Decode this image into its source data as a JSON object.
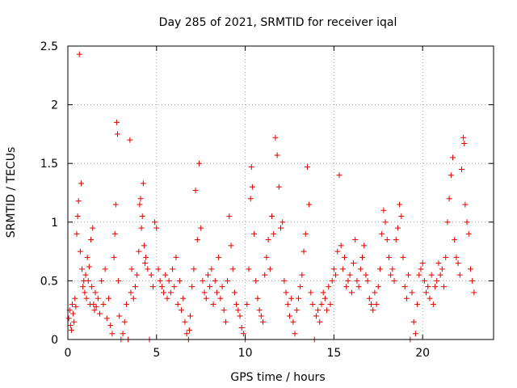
{
  "chart_data": {
    "type": "scatter",
    "title": "Day 285 of 2021, SRMTID for receiver iqal",
    "xlabel": "GPS time / hours",
    "ylabel": "SRMTID / TECUs",
    "xlim": [
      0,
      24
    ],
    "ylim": [
      0,
      2.5
    ],
    "xticks": [
      0,
      5,
      10,
      15,
      20
    ],
    "yticks": [
      0,
      0.5,
      1,
      1.5,
      2,
      2.5
    ],
    "xtick_labels": [
      "0",
      "5",
      "10",
      "15",
      "20"
    ],
    "ytick_labels": [
      "0",
      "0.5",
      "1",
      "1.5",
      "2",
      "2.5"
    ],
    "grid": true,
    "marker": "+",
    "color": "#e00000",
    "series": [
      {
        "name": "iqal",
        "points": [
          [
            0.05,
            0.18
          ],
          [
            0.1,
            0.25
          ],
          [
            0.15,
            0.12
          ],
          [
            0.2,
            0.08
          ],
          [
            0.25,
            0.3
          ],
          [
            0.3,
            0.22
          ],
          [
            0.35,
            0.15
          ],
          [
            0.4,
            0.35
          ],
          [
            0.45,
            0.28
          ],
          [
            0.5,
            0.9
          ],
          [
            0.55,
            1.05
          ],
          [
            0.6,
            1.18
          ],
          [
            0.65,
            2.43
          ],
          [
            0.7,
            0.75
          ],
          [
            0.75,
            1.33
          ],
          [
            0.8,
            0.6
          ],
          [
            0.85,
            0.45
          ],
          [
            0.9,
            0.5
          ],
          [
            0.95,
            0.4
          ],
          [
            1.0,
            0.55
          ],
          [
            1.05,
            0.35
          ],
          [
            1.1,
            0.7
          ],
          [
            1.15,
            0.5
          ],
          [
            1.2,
            0.62
          ],
          [
            1.25,
            0.3
          ],
          [
            1.3,
            0.85
          ],
          [
            1.35,
            0.45
          ],
          [
            1.4,
            0.95
          ],
          [
            1.45,
            0.3
          ],
          [
            1.5,
            0.25
          ],
          [
            1.55,
            0.4
          ],
          [
            1.6,
            0.28
          ],
          [
            1.7,
            0.35
          ],
          [
            1.8,
            0.22
          ],
          [
            1.9,
            0.5
          ],
          [
            2.0,
            0.3
          ],
          [
            2.1,
            0.6
          ],
          [
            2.2,
            0.18
          ],
          [
            2.3,
            0.35
          ],
          [
            2.4,
            0.12
          ],
          [
            2.5,
            0.05
          ],
          [
            2.6,
            0.7
          ],
          [
            2.65,
            0.9
          ],
          [
            2.7,
            1.15
          ],
          [
            2.75,
            1.85
          ],
          [
            2.8,
            1.75
          ],
          [
            2.85,
            0.5
          ],
          [
            2.9,
            0.2
          ],
          [
            3.0,
            0.0
          ],
          [
            3.1,
            0.05
          ],
          [
            3.2,
            0.15
          ],
          [
            3.3,
            0.3
          ],
          [
            3.4,
            0.0
          ],
          [
            3.5,
            1.7
          ],
          [
            3.55,
            0.4
          ],
          [
            3.6,
            0.6
          ],
          [
            3.7,
            0.35
          ],
          [
            3.8,
            0.45
          ],
          [
            3.9,
            0.55
          ],
          [
            4.0,
            0.75
          ],
          [
            4.05,
            1.15
          ],
          [
            4.1,
            1.2
          ],
          [
            4.15,
            0.95
          ],
          [
            4.2,
            1.05
          ],
          [
            4.25,
            1.33
          ],
          [
            4.3,
            0.8
          ],
          [
            4.35,
            0.65
          ],
          [
            4.4,
            0.7
          ],
          [
            4.5,
            0.6
          ],
          [
            4.6,
            0.0
          ],
          [
            4.7,
            0.55
          ],
          [
            4.8,
            0.45
          ],
          [
            4.9,
            1.0
          ],
          [
            5.0,
            0.95
          ],
          [
            5.1,
            0.6
          ],
          [
            5.2,
            0.5
          ],
          [
            5.3,
            0.45
          ],
          [
            5.4,
            0.4
          ],
          [
            5.5,
            0.55
          ],
          [
            5.6,
            0.35
          ],
          [
            5.7,
            0.5
          ],
          [
            5.8,
            0.4
          ],
          [
            5.9,
            0.6
          ],
          [
            6.0,
            0.45
          ],
          [
            6.1,
            0.7
          ],
          [
            6.2,
            0.3
          ],
          [
            6.3,
            0.5
          ],
          [
            6.4,
            0.25
          ],
          [
            6.5,
            0.35
          ],
          [
            6.6,
            0.15
          ],
          [
            6.7,
            0.05
          ],
          [
            6.8,
            0.0
          ],
          [
            6.85,
            0.08
          ],
          [
            6.9,
            0.2
          ],
          [
            7.0,
            0.45
          ],
          [
            7.1,
            0.6
          ],
          [
            7.2,
            1.27
          ],
          [
            7.3,
            0.85
          ],
          [
            7.4,
            1.5
          ],
          [
            7.5,
            0.95
          ],
          [
            7.6,
            0.5
          ],
          [
            7.7,
            0.4
          ],
          [
            7.8,
            0.35
          ],
          [
            7.9,
            0.55
          ],
          [
            8.0,
            0.45
          ],
          [
            8.1,
            0.6
          ],
          [
            8.2,
            0.3
          ],
          [
            8.3,
            0.5
          ],
          [
            8.4,
            0.4
          ],
          [
            8.5,
            0.7
          ],
          [
            8.6,
            0.35
          ],
          [
            8.7,
            0.45
          ],
          [
            8.8,
            0.25
          ],
          [
            8.9,
            0.15
          ],
          [
            9.0,
            0.5
          ],
          [
            9.1,
            1.05
          ],
          [
            9.2,
            0.8
          ],
          [
            9.3,
            0.6
          ],
          [
            9.4,
            0.4
          ],
          [
            9.5,
            0.3
          ],
          [
            9.6,
            0.25
          ],
          [
            9.7,
            0.2
          ],
          [
            9.8,
            0.1
          ],
          [
            9.9,
            0.05
          ],
          [
            10.0,
            0.0
          ],
          [
            10.1,
            0.3
          ],
          [
            10.2,
            0.6
          ],
          [
            10.3,
            1.2
          ],
          [
            10.35,
            1.47
          ],
          [
            10.4,
            1.3
          ],
          [
            10.5,
            0.9
          ],
          [
            10.6,
            0.5
          ],
          [
            10.7,
            0.35
          ],
          [
            10.8,
            0.25
          ],
          [
            10.9,
            0.2
          ],
          [
            11.0,
            0.15
          ],
          [
            11.1,
            0.55
          ],
          [
            11.2,
            0.7
          ],
          [
            11.3,
            0.85
          ],
          [
            11.4,
            0.6
          ],
          [
            11.5,
            1.05
          ],
          [
            11.6,
            0.9
          ],
          [
            11.7,
            1.72
          ],
          [
            11.8,
            1.57
          ],
          [
            11.9,
            1.3
          ],
          [
            12.0,
            0.95
          ],
          [
            12.1,
            1.0
          ],
          [
            12.2,
            0.5
          ],
          [
            12.3,
            0.4
          ],
          [
            12.4,
            0.3
          ],
          [
            12.5,
            0.2
          ],
          [
            12.6,
            0.35
          ],
          [
            12.7,
            0.15
          ],
          [
            12.8,
            0.05
          ],
          [
            12.9,
            0.25
          ],
          [
            13.0,
            0.35
          ],
          [
            13.1,
            0.45
          ],
          [
            13.2,
            0.55
          ],
          [
            13.3,
            0.75
          ],
          [
            13.4,
            0.9
          ],
          [
            13.5,
            1.47
          ],
          [
            13.6,
            1.15
          ],
          [
            13.7,
            0.4
          ],
          [
            13.8,
            0.3
          ],
          [
            13.9,
            0.0
          ],
          [
            14.0,
            0.2
          ],
          [
            14.1,
            0.25
          ],
          [
            14.2,
            0.15
          ],
          [
            14.3,
            0.3
          ],
          [
            14.4,
            0.4
          ],
          [
            14.5,
            0.35
          ],
          [
            14.6,
            0.25
          ],
          [
            14.7,
            0.45
          ],
          [
            14.8,
            0.3
          ],
          [
            14.9,
            0.5
          ],
          [
            15.0,
            0.6
          ],
          [
            15.1,
            0.55
          ],
          [
            15.2,
            0.75
          ],
          [
            15.3,
            1.4
          ],
          [
            15.4,
            0.8
          ],
          [
            15.5,
            0.6
          ],
          [
            15.6,
            0.7
          ],
          [
            15.7,
            0.45
          ],
          [
            15.8,
            0.5
          ],
          [
            15.9,
            0.55
          ],
          [
            16.0,
            0.4
          ],
          [
            16.1,
            0.65
          ],
          [
            16.2,
            0.85
          ],
          [
            16.3,
            0.5
          ],
          [
            16.4,
            0.45
          ],
          [
            16.5,
            0.6
          ],
          [
            16.6,
            0.7
          ],
          [
            16.7,
            0.8
          ],
          [
            16.8,
            0.55
          ],
          [
            16.9,
            0.5
          ],
          [
            17.0,
            0.35
          ],
          [
            17.1,
            0.3
          ],
          [
            17.2,
            0.25
          ],
          [
            17.3,
            0.4
          ],
          [
            17.4,
            0.3
          ],
          [
            17.5,
            0.45
          ],
          [
            17.6,
            0.6
          ],
          [
            17.7,
            0.9
          ],
          [
            17.8,
            1.1
          ],
          [
            17.9,
            1.0
          ],
          [
            18.0,
            0.85
          ],
          [
            18.1,
            0.7
          ],
          [
            18.2,
            0.55
          ],
          [
            18.3,
            0.6
          ],
          [
            18.4,
            0.5
          ],
          [
            18.5,
            0.85
          ],
          [
            18.6,
            0.95
          ],
          [
            18.7,
            1.15
          ],
          [
            18.8,
            1.05
          ],
          [
            18.9,
            0.7
          ],
          [
            19.0,
            0.45
          ],
          [
            19.1,
            0.35
          ],
          [
            19.2,
            0.55
          ],
          [
            19.3,
            0.0
          ],
          [
            19.4,
            0.4
          ],
          [
            19.5,
            0.15
          ],
          [
            19.6,
            0.05
          ],
          [
            19.7,
            0.3
          ],
          [
            19.8,
            0.55
          ],
          [
            19.9,
            0.6
          ],
          [
            20.0,
            0.65
          ],
          [
            20.1,
            0.5
          ],
          [
            20.2,
            0.4
          ],
          [
            20.3,
            0.45
          ],
          [
            20.4,
            0.35
          ],
          [
            20.5,
            0.55
          ],
          [
            20.6,
            0.3
          ],
          [
            20.7,
            0.45
          ],
          [
            20.8,
            0.5
          ],
          [
            20.9,
            0.65
          ],
          [
            21.0,
            0.55
          ],
          [
            21.1,
            0.6
          ],
          [
            21.2,
            0.45
          ],
          [
            21.3,
            0.7
          ],
          [
            21.4,
            1.0
          ],
          [
            21.5,
            1.2
          ],
          [
            21.6,
            1.4
          ],
          [
            21.7,
            1.55
          ],
          [
            21.8,
            0.85
          ],
          [
            21.9,
            0.7
          ],
          [
            22.0,
            0.65
          ],
          [
            22.1,
            0.55
          ],
          [
            22.2,
            1.45
          ],
          [
            22.3,
            1.72
          ],
          [
            22.35,
            1.67
          ],
          [
            22.4,
            1.15
          ],
          [
            22.5,
            1.0
          ],
          [
            22.6,
            0.9
          ],
          [
            22.7,
            0.6
          ],
          [
            22.8,
            0.5
          ],
          [
            22.9,
            0.4
          ]
        ]
      }
    ]
  }
}
